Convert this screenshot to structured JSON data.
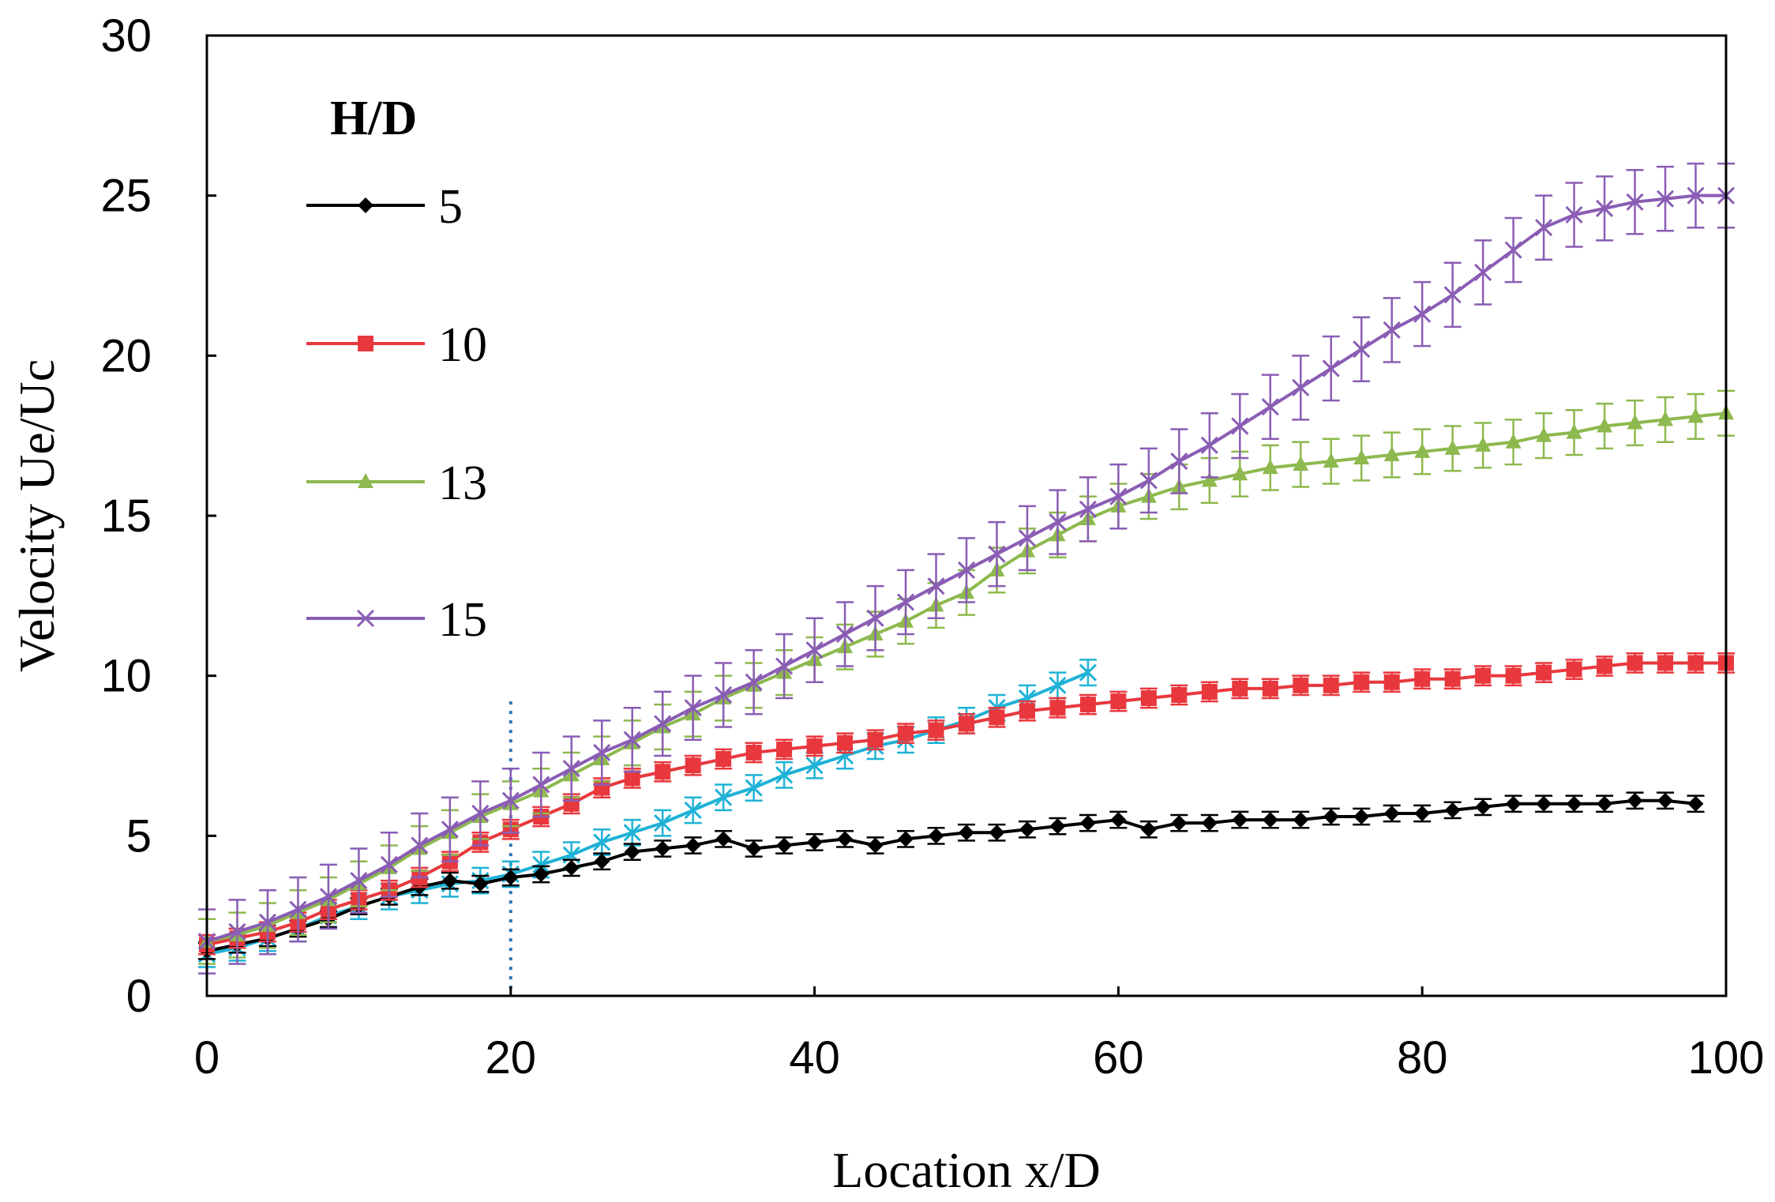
{
  "chart_data": {
    "type": "line",
    "title": "",
    "xlabel": "Location x/D",
    "ylabel": "Velocity Ue/Uc",
    "xlim": [
      0,
      100
    ],
    "ylim": [
      0,
      30
    ],
    "xticks": [
      "0",
      "20",
      "40",
      "60",
      "80",
      "100"
    ],
    "yticks": [
      "0",
      "5",
      "10",
      "15",
      "20",
      "25",
      "30"
    ],
    "grid": false,
    "legend_title": "H/D",
    "legend_position": "top-left",
    "reference_line": {
      "x": 20,
      "style": "dotted",
      "color": "#2E75B6"
    },
    "series": [
      {
        "name": "5",
        "color": "#000000",
        "marker": "diamond",
        "x": [
          0,
          2,
          4,
          6,
          8,
          10,
          12,
          14,
          16,
          18,
          20,
          22,
          24,
          26,
          28,
          30,
          32,
          34,
          36,
          38,
          40,
          42,
          44,
          46,
          48,
          50,
          52,
          54,
          56,
          58,
          60,
          62,
          64,
          66,
          68,
          70,
          72,
          74,
          76,
          78,
          80,
          82,
          84,
          86,
          88,
          90,
          92,
          94,
          96,
          98
        ],
        "y": [
          1.4,
          1.6,
          1.8,
          2.1,
          2.4,
          2.8,
          3.1,
          3.4,
          3.6,
          3.5,
          3.7,
          3.8,
          4.0,
          4.2,
          4.5,
          4.6,
          4.7,
          4.9,
          4.6,
          4.7,
          4.8,
          4.9,
          4.7,
          4.9,
          5.0,
          5.1,
          5.1,
          5.2,
          5.3,
          5.4,
          5.5,
          5.2,
          5.4,
          5.4,
          5.5,
          5.5,
          5.5,
          5.6,
          5.6,
          5.7,
          5.7,
          5.8,
          5.9,
          6.0,
          6.0,
          6.0,
          6.0,
          6.1,
          6.1,
          6.0
        ],
        "error": 0.25
      },
      {
        "name": "10",
        "color": "#E8383D",
        "marker": "square",
        "x": [
          0,
          2,
          4,
          6,
          8,
          10,
          12,
          14,
          16,
          18,
          20,
          22,
          24,
          26,
          28,
          30,
          32,
          34,
          36,
          38,
          40,
          42,
          44,
          46,
          48,
          50,
          52,
          54,
          56,
          58,
          60,
          62,
          64,
          66,
          68,
          70,
          72,
          74,
          76,
          78,
          80,
          82,
          84,
          86,
          88,
          90,
          92,
          94,
          96,
          98,
          100
        ],
        "y": [
          1.6,
          1.8,
          2.0,
          2.3,
          2.7,
          3.0,
          3.3,
          3.7,
          4.2,
          4.8,
          5.2,
          5.6,
          6.0,
          6.5,
          6.8,
          7.0,
          7.2,
          7.4,
          7.6,
          7.7,
          7.8,
          7.9,
          8.0,
          8.2,
          8.3,
          8.5,
          8.7,
          8.9,
          9.0,
          9.1,
          9.2,
          9.3,
          9.4,
          9.5,
          9.6,
          9.6,
          9.7,
          9.7,
          9.8,
          9.8,
          9.9,
          9.9,
          10.0,
          10.0,
          10.1,
          10.2,
          10.3,
          10.4,
          10.4,
          10.4,
          10.4
        ],
        "error": 0.3
      },
      {
        "name": "13",
        "color": "#8DB94E",
        "marker": "triangle",
        "x": [
          0,
          2,
          4,
          6,
          8,
          10,
          12,
          14,
          16,
          18,
          20,
          22,
          24,
          26,
          28,
          30,
          32,
          34,
          36,
          38,
          40,
          42,
          44,
          46,
          48,
          50,
          52,
          54,
          56,
          58,
          60,
          62,
          64,
          66,
          68,
          70,
          72,
          74,
          76,
          78,
          80,
          82,
          84,
          86,
          88,
          90,
          92,
          94,
          96,
          98,
          100
        ],
        "y": [
          1.7,
          1.9,
          2.2,
          2.6,
          3.0,
          3.5,
          4.0,
          4.6,
          5.1,
          5.6,
          6.0,
          6.4,
          6.9,
          7.4,
          7.9,
          8.4,
          8.8,
          9.3,
          9.7,
          10.1,
          10.5,
          10.9,
          11.3,
          11.7,
          12.2,
          12.6,
          13.3,
          13.9,
          14.4,
          14.9,
          15.3,
          15.6,
          15.9,
          16.1,
          16.3,
          16.5,
          16.6,
          16.7,
          16.8,
          16.9,
          17.0,
          17.1,
          17.2,
          17.3,
          17.5,
          17.6,
          17.8,
          17.9,
          18.0,
          18.1,
          18.2
        ],
        "error": 0.7
      },
      {
        "name": "15",
        "color": "#8A5DB4",
        "marker": "x",
        "x": [
          0,
          2,
          4,
          6,
          8,
          10,
          12,
          14,
          16,
          18,
          20,
          22,
          24,
          26,
          28,
          30,
          32,
          34,
          36,
          38,
          40,
          42,
          44,
          46,
          48,
          50,
          52,
          54,
          56,
          58,
          60,
          62,
          64,
          66,
          68,
          70,
          72,
          74,
          76,
          78,
          80,
          82,
          84,
          86,
          88,
          90,
          92,
          94,
          96,
          98,
          100
        ],
        "y": [
          1.7,
          2.0,
          2.3,
          2.7,
          3.1,
          3.6,
          4.1,
          4.7,
          5.2,
          5.7,
          6.1,
          6.6,
          7.1,
          7.6,
          8.0,
          8.5,
          9.0,
          9.4,
          9.8,
          10.3,
          10.8,
          11.3,
          11.8,
          12.3,
          12.8,
          13.3,
          13.8,
          14.3,
          14.8,
          15.2,
          15.6,
          16.1,
          16.7,
          17.2,
          17.8,
          18.4,
          19.0,
          19.6,
          20.2,
          20.8,
          21.3,
          21.9,
          22.6,
          23.3,
          24.0,
          24.4,
          24.6,
          24.8,
          24.9,
          25.0,
          25.0
        ],
        "error": 1.0
      },
      {
        "name": "",
        "color": "#1FB2D6",
        "marker": "x",
        "x": [
          0,
          2,
          4,
          6,
          8,
          10,
          12,
          14,
          16,
          18,
          20,
          22,
          24,
          26,
          28,
          30,
          32,
          34,
          36,
          38,
          40,
          42,
          44,
          46,
          48,
          50,
          52,
          54,
          56,
          58
        ],
        "y": [
          1.3,
          1.5,
          1.8,
          2.1,
          2.5,
          2.8,
          3.1,
          3.3,
          3.5,
          3.6,
          3.8,
          4.1,
          4.4,
          4.8,
          5.1,
          5.4,
          5.8,
          6.2,
          6.5,
          6.9,
          7.2,
          7.5,
          7.8,
          8.0,
          8.3,
          8.6,
          9.0,
          9.3,
          9.7,
          10.1
        ],
        "error": 0.4
      }
    ]
  }
}
